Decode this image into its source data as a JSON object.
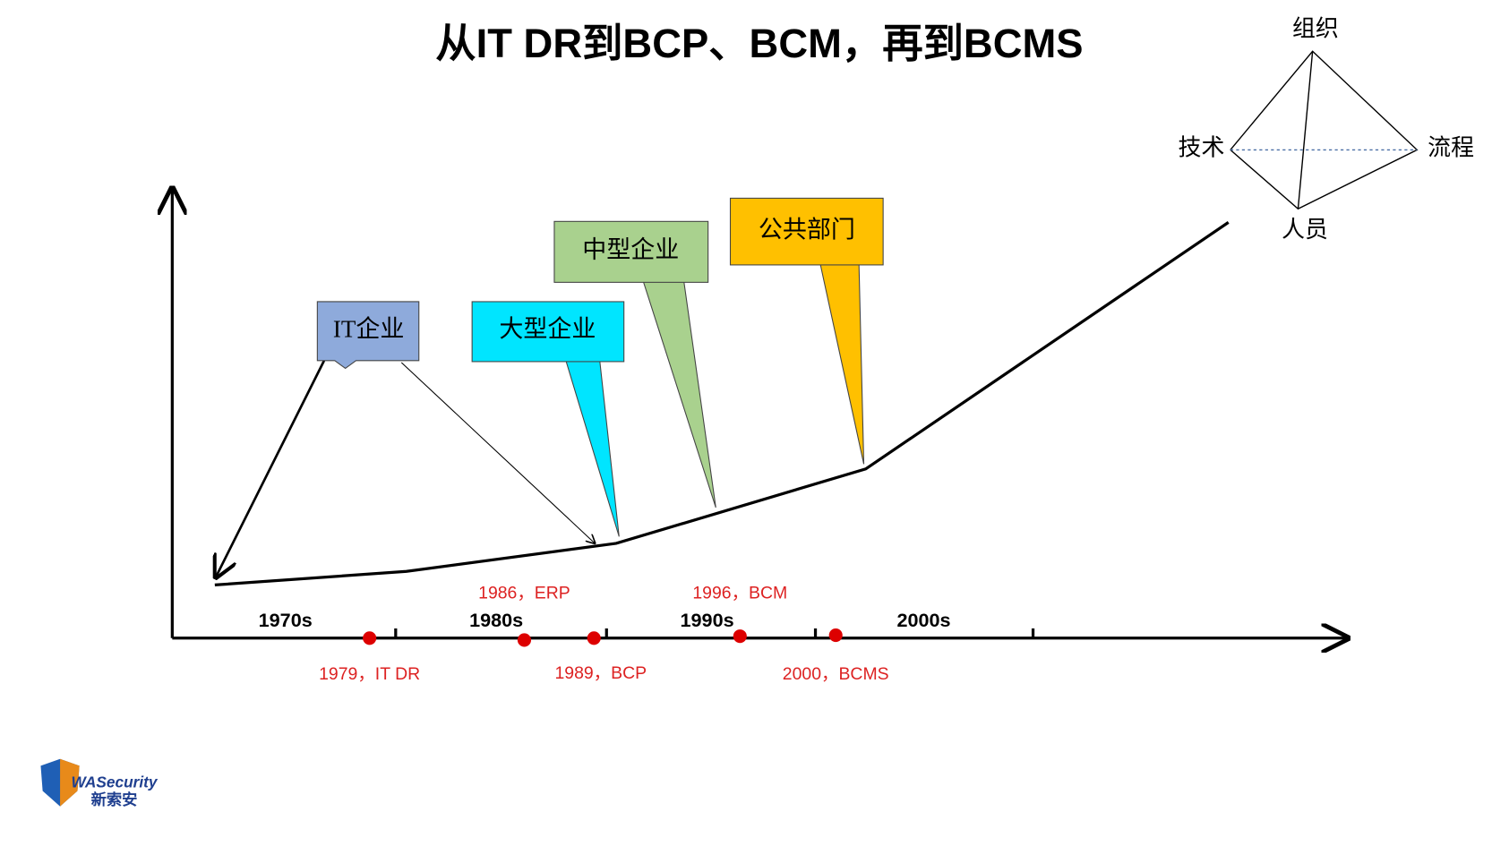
{
  "title": "从IT  DR到BCP、BCM，再到BCMS",
  "callouts": [
    {
      "label": "IT企业"
    },
    {
      "label": "大型企业"
    },
    {
      "label": "中型企业"
    },
    {
      "label": "公共部门"
    }
  ],
  "decades": [
    "1970s",
    "1980s",
    "1990s",
    "2000s"
  ],
  "milestones": [
    "1979，IT DR",
    "1986，ERP",
    "1989，BCP",
    "1996，BCM",
    "2000，BCMS"
  ],
  "pyramid": {
    "top": "组织",
    "left": "技术",
    "right": "流程",
    "bottom": "人员"
  },
  "logo": {
    "brand": "WASecurity",
    "chinese": "新索安"
  }
}
